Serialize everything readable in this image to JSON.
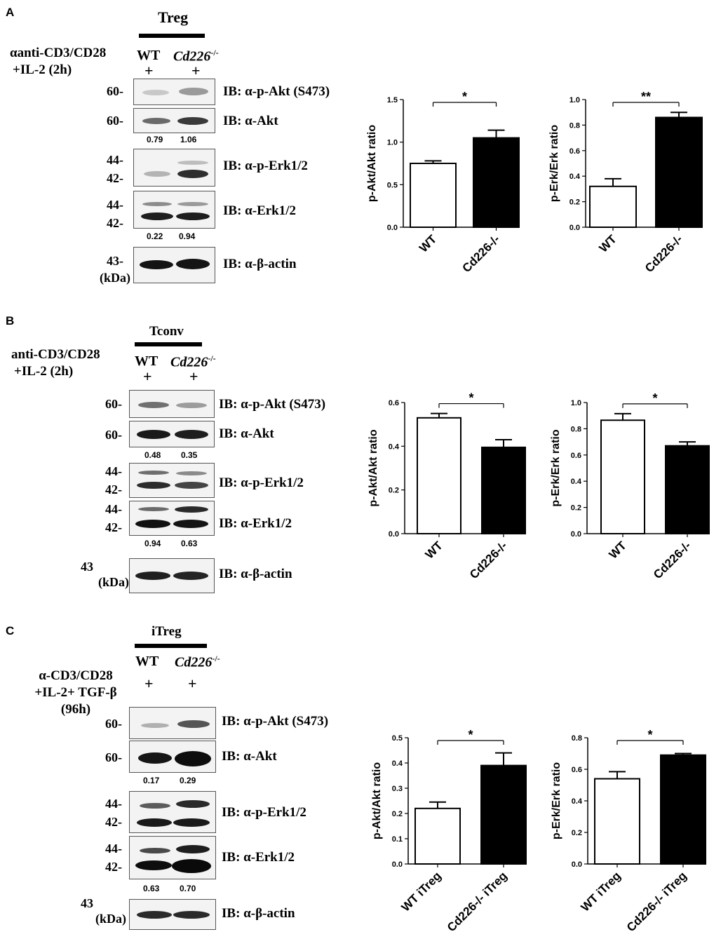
{
  "panels": [
    {
      "letter": "A",
      "group": "Treg",
      "condition_line1": "αanti-CD3/CD28",
      "condition_line2": "+IL-2 (2h)",
      "lane_wt": "WT",
      "lane_ko": "Cd226",
      "lane_ko_sup": "-/-",
      "plus": "+",
      "mw": [
        "60-",
        "60-",
        "44-",
        "42-",
        "44-",
        "42-",
        "43-",
        "(kDa)"
      ],
      "ib": [
        "IB: α-p-Akt (S473)",
        "IB: α-Akt",
        "IB: α-p-Erk1/2",
        "IB: α-Erk1/2",
        "IB: α-β-actin"
      ],
      "quant_akt": [
        "0.79",
        "1.06"
      ],
      "quant_erk": [
        "0.22",
        "0.94"
      ]
    },
    {
      "letter": "B",
      "group": "Tconv",
      "condition_line1": "anti-CD3/CD28",
      "condition_line2": "+IL-2 (2h)",
      "lane_wt": "WT",
      "lane_ko": "Cd226",
      "lane_ko_sup": "-/-",
      "plus": "+",
      "mw": [
        "60-",
        "60-",
        "44-",
        "42-",
        "44-",
        "42-",
        "43",
        "(kDa)"
      ],
      "ib": [
        "IB: α-p-Akt (S473)",
        "IB: α-Akt",
        "IB: α-p-Erk1/2",
        "IB: α-Erk1/2",
        "IB: α-β-actin"
      ],
      "quant_akt": [
        "0.48",
        "0.35"
      ],
      "quant_erk": [
        "0.94",
        "0.63"
      ]
    },
    {
      "letter": "C",
      "group": "iTreg",
      "condition_line1": "α-CD3/CD28",
      "condition_line2": "+IL-2+ TGF-β",
      "condition_line3": "(96h)",
      "lane_wt": "WT",
      "lane_ko": "Cd226",
      "lane_ko_sup": "-/-",
      "plus": "+",
      "mw": [
        "60-",
        "60-",
        "44-",
        "42-",
        "44-",
        "42-",
        "43",
        "(kDa)"
      ],
      "ib": [
        "IB: α-p-Akt (S473)",
        "IB: α-Akt",
        "IB: α-p-Erk1/2",
        "IB: α-Erk1/2",
        "IB: α-β-actin"
      ],
      "quant_akt": [
        "0.17",
        "0.29"
      ],
      "quant_erk": [
        "0.63",
        "0.70"
      ]
    }
  ],
  "chart_data": [
    {
      "type": "bar",
      "categories": [
        "WT",
        "Cd226-/-"
      ],
      "values": [
        0.75,
        1.05
      ],
      "errors": [
        0.03,
        0.09
      ],
      "ylabel": "p-Akt/Akt ratio",
      "ylim": [
        0,
        1.5
      ],
      "ticks": [
        "0.0",
        "0.5",
        "1.0",
        "1.5"
      ],
      "tickvals": [
        0,
        0.5,
        1.0,
        1.5
      ],
      "sig": "*",
      "colors": [
        "#ffffff",
        "#000000"
      ]
    },
    {
      "type": "bar",
      "categories": [
        "WT",
        "Cd226-/-"
      ],
      "values": [
        0.32,
        0.86
      ],
      "errors": [
        0.06,
        0.04
      ],
      "ylabel": "p-Erk/Erk ratio",
      "ylim": [
        0,
        1.0
      ],
      "ticks": [
        "0.0",
        "0.2",
        "0.4",
        "0.6",
        "0.8",
        "1.0"
      ],
      "tickvals": [
        0,
        0.2,
        0.4,
        0.6,
        0.8,
        1.0
      ],
      "sig": "**",
      "colors": [
        "#ffffff",
        "#000000"
      ]
    },
    {
      "type": "bar",
      "categories": [
        "WT",
        "Cd226-/-"
      ],
      "values": [
        0.53,
        0.395
      ],
      "errors": [
        0.02,
        0.035
      ],
      "ylabel": "p-Akt/Akt ratio",
      "ylim": [
        0,
        0.6
      ],
      "ticks": [
        "0.0",
        "0.2",
        "0.4",
        "0.6"
      ],
      "tickvals": [
        0,
        0.2,
        0.4,
        0.6
      ],
      "sig": "*",
      "colors": [
        "#ffffff",
        "#000000"
      ]
    },
    {
      "type": "bar",
      "categories": [
        "WT",
        "Cd226-/-"
      ],
      "values": [
        0.865,
        0.67
      ],
      "errors": [
        0.05,
        0.03
      ],
      "ylabel": "p-Erk/Erk ratio",
      "ylim": [
        0,
        1.0
      ],
      "ticks": [
        "0.0",
        "0.2",
        "0.4",
        "0.6",
        "0.8",
        "1.0"
      ],
      "tickvals": [
        0,
        0.2,
        0.4,
        0.6,
        0.8,
        1.0
      ],
      "sig": "*",
      "colors": [
        "#ffffff",
        "#000000"
      ]
    },
    {
      "type": "bar",
      "categories": [
        "WT iTreg",
        "Cd226-/- iTreg"
      ],
      "values": [
        0.22,
        0.39
      ],
      "errors": [
        0.025,
        0.05
      ],
      "ylabel": "p-Akt/Akt ratio",
      "ylim": [
        0,
        0.5
      ],
      "ticks": [
        "0.0",
        "0.1",
        "0.2",
        "0.3",
        "0.4",
        "0.5"
      ],
      "tickvals": [
        0,
        0.1,
        0.2,
        0.3,
        0.4,
        0.5
      ],
      "sig": "*",
      "colors": [
        "#ffffff",
        "#000000"
      ]
    },
    {
      "type": "bar",
      "categories": [
        "WT iTreg",
        "Cd226-/- iTreg"
      ],
      "values": [
        0.54,
        0.69
      ],
      "errors": [
        0.045,
        0.01
      ],
      "ylabel": "p-Erk/Erk ratio",
      "ylim": [
        0,
        0.8
      ],
      "ticks": [
        "0.0",
        "0.2",
        "0.4",
        "0.6",
        "0.8"
      ],
      "tickvals": [
        0,
        0.2,
        0.4,
        0.6,
        0.8
      ],
      "sig": "*",
      "colors": [
        "#ffffff",
        "#000000"
      ]
    }
  ]
}
